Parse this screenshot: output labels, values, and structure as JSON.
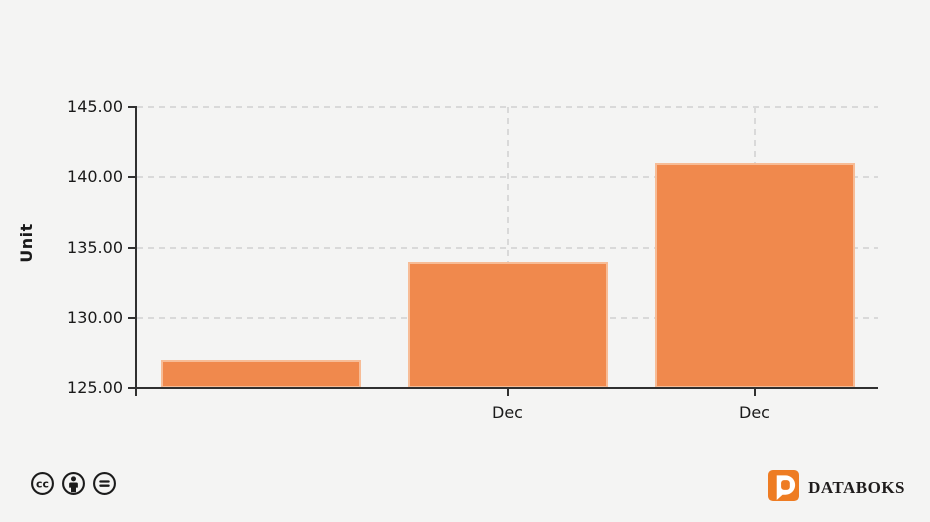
{
  "page": {
    "background_color": "#F4F4F3"
  },
  "chart_data": {
    "type": "bar",
    "categories": [
      "",
      "Dec",
      "Dec"
    ],
    "values": [
      127,
      134,
      141
    ],
    "title": "",
    "xlabel": "",
    "ylabel": "Unit",
    "ylim": [
      125,
      145
    ],
    "yticks": [
      125,
      130,
      135,
      140,
      145
    ],
    "ytick_labels": [
      "125.00",
      "130.00",
      "135.00",
      "140.00",
      "145.00"
    ],
    "grid": "dashed",
    "legend_position": "none",
    "bar_color": "#F0894D",
    "bar_border_color": "#F7BC96",
    "axis_color": "#303030",
    "grid_color": "#D9D9D9",
    "label_color": "#1A1A1A"
  },
  "footer": {
    "license": {
      "icons": [
        "cc-icon",
        "by-attribution-icon",
        "nd-equals-icon"
      ],
      "color": "#1B1B1B"
    },
    "brand": {
      "name": "DATABOKS",
      "logo_color": "#EE7C23",
      "text_color": "#1F1C1C"
    }
  }
}
